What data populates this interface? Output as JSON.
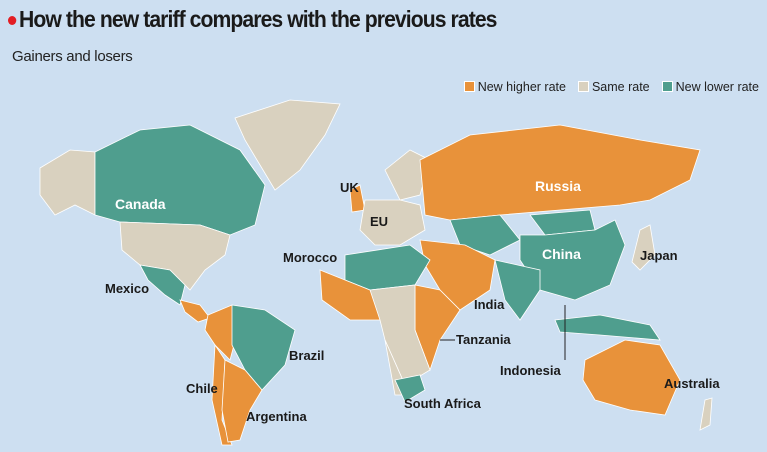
{
  "title": "How the new tariff compares with the previous rates",
  "subtitle": "Gainers and losers",
  "colors": {
    "higher": "#e8923a",
    "same": "#d9d1bf",
    "lower": "#4f9e8e",
    "water": "#cddff1",
    "title_dot": "#e31e24"
  },
  "legend": [
    {
      "label": "New higher rate",
      "key": "higher"
    },
    {
      "label": "Same rate",
      "key": "same"
    },
    {
      "label": "New lower rate",
      "key": "lower"
    }
  ],
  "labels": {
    "canada": "Canada",
    "uk": "UK",
    "eu": "EU",
    "russia": "Russia",
    "china": "China",
    "japan": "Japan",
    "morocco": "Morocco",
    "mexico": "Mexico",
    "india": "India",
    "tanzania": "Tanzania",
    "indonesia": "Indonesia",
    "brazil": "Brazil",
    "chile": "Chile",
    "argentina": "Argentina",
    "south_africa": "South Africa",
    "australia": "Australia"
  },
  "regions": {
    "greenland": "same",
    "canada": "lower",
    "usa": "same",
    "alaska": "same",
    "mexico": "lower",
    "central_america": "higher",
    "brazil": "lower",
    "andes": "higher",
    "argentina": "higher",
    "chile": "higher",
    "uk": "higher",
    "eu": "same",
    "scandinavia": "same",
    "russia": "higher",
    "central_asia": "lower",
    "china": "lower",
    "mongolia": "lower",
    "japan": "same",
    "india": "lower",
    "middle_east": "higher",
    "north_africa": "lower",
    "west_africa": "higher",
    "central_africa": "same",
    "east_africa": "higher",
    "south_africa": "lower",
    "southern_africa": "same",
    "indonesia": "lower",
    "australia": "higher",
    "new_zealand": "same"
  }
}
